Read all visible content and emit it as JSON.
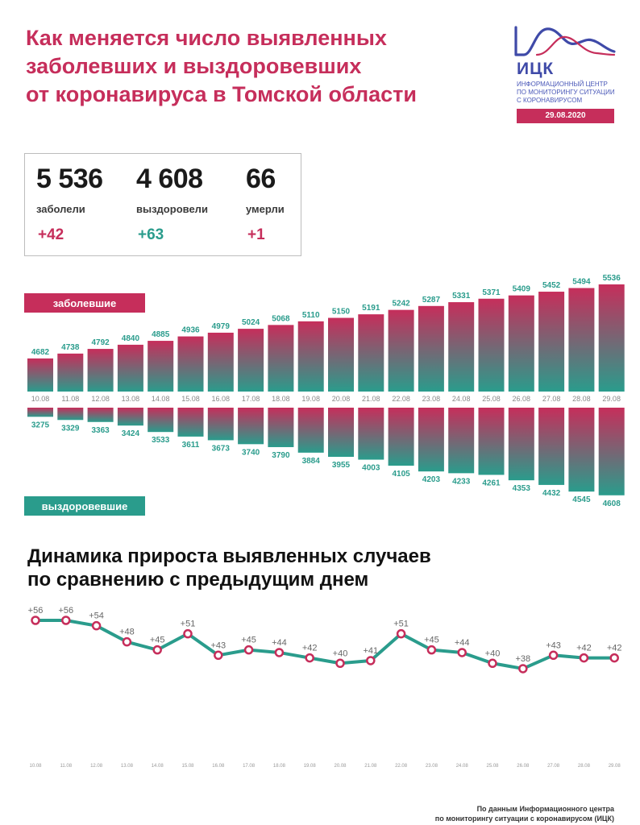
{
  "header": {
    "title_lines": [
      "Как меняется число выявленных",
      "заболевших и выздоровевших",
      "от коронавируса в Томской области"
    ]
  },
  "logo": {
    "name": "ИЦК",
    "subtitle_lines": [
      "ИНФОРМАЦИОННЫЙ ЦЕНТР",
      "ПО МОНИТОРИНГУ СИТУАЦИИ",
      "С КОРОНАВИРУСОМ"
    ],
    "date": "29.08.2020"
  },
  "stats": [
    {
      "value": "5 536",
      "label": "заболели",
      "delta": "+42",
      "color": "#c62e5b"
    },
    {
      "value": "4 608",
      "label": "выздоровели",
      "delta": "+63",
      "color": "#2a9c8c"
    },
    {
      "value": "66",
      "label": "умерли",
      "delta": "+1",
      "color": "#c62e5b"
    }
  ],
  "colors": {
    "infected": "#c62e5b",
    "recovered": "#2a9c8c",
    "grid": "#dddddd",
    "dates": "#888888"
  },
  "chart_data": [
    {
      "type": "bar",
      "categories": [
        "10.08",
        "11.08",
        "12.08",
        "13.08",
        "14.08",
        "15.08",
        "16.08",
        "17.08",
        "18.08",
        "19.08",
        "20.08",
        "21.08",
        "22.08",
        "23.08",
        "24.08",
        "25.08",
        "26.08",
        "27.08",
        "28.08",
        "29.08"
      ],
      "series": [
        {
          "name": "заболевшие",
          "values": [
            4682,
            4738,
            4792,
            4840,
            4885,
            4936,
            4979,
            5024,
            5068,
            5110,
            5150,
            5191,
            5242,
            5287,
            5331,
            5371,
            5409,
            5452,
            5494,
            5536
          ]
        },
        {
          "name": "выздоровевшие",
          "values": [
            3275,
            3329,
            3363,
            3424,
            3533,
            3611,
            3673,
            3740,
            3790,
            3884,
            3955,
            4003,
            4105,
            4203,
            4233,
            4261,
            4353,
            4432,
            4545,
            4608
          ]
        }
      ]
    },
    {
      "type": "line",
      "title": "Динамика прироста выявленных случаев по сравнению с предыдущим днем",
      "title_lines": [
        "Динамика прироста выявленных случаев",
        "по сравнению с предыдущим днем"
      ],
      "categories": [
        "10.08",
        "11.08",
        "12.08",
        "13.08",
        "14.08",
        "15.08",
        "16.08",
        "17.08",
        "18.08",
        "19.08",
        "20.08",
        "21.08",
        "22.08",
        "23.08",
        "24.08",
        "25.08",
        "26.08",
        "27.08",
        "28.08",
        "29.08"
      ],
      "values": [
        56,
        56,
        54,
        48,
        45,
        51,
        43,
        45,
        44,
        42,
        40,
        41,
        51,
        45,
        44,
        40,
        38,
        43,
        42,
        42
      ],
      "labels": [
        "+56",
        "+56",
        "+54",
        "+48",
        "+45",
        "+51",
        "+43",
        "+45",
        "+44",
        "+42",
        "+40",
        "+41",
        "+51",
        "+45",
        "+44",
        "+40",
        "+38",
        "+43",
        "+42",
        "+42"
      ]
    }
  ],
  "source_lines": [
    "По данным Информационного центра",
    "по мониторингу ситуации с коронавирусом (ИЦК)"
  ]
}
